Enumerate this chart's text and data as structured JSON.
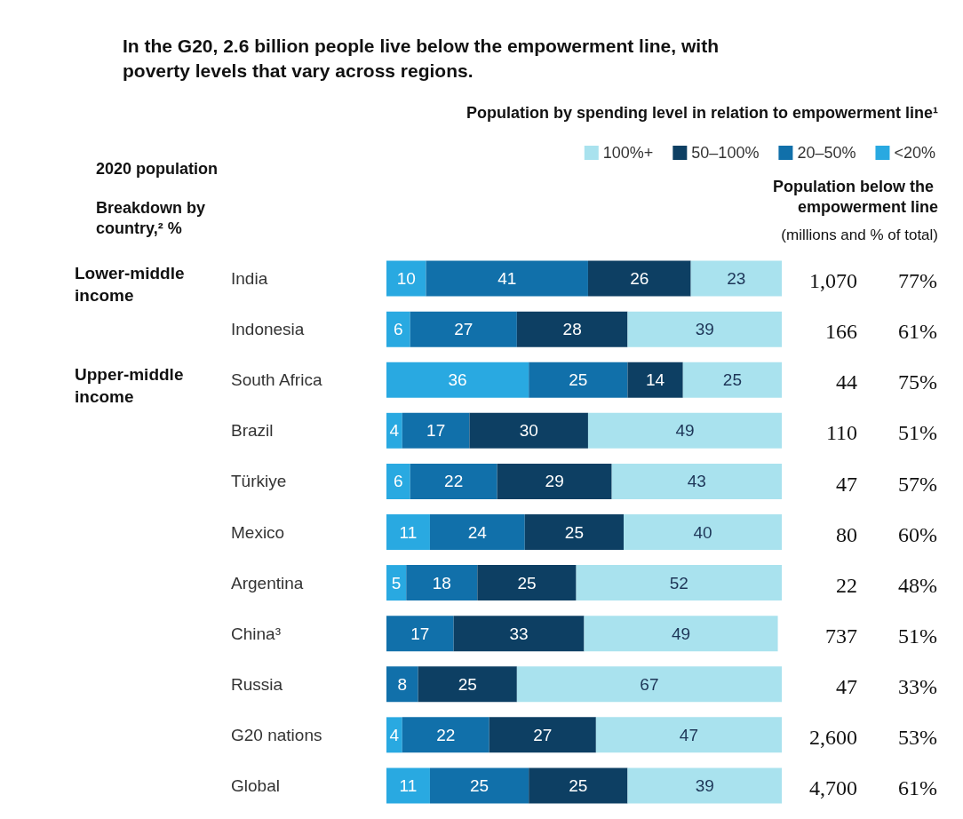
{
  "chart_data": {
    "type": "bar",
    "orientation": "horizontal",
    "stacked": true,
    "data_labels": true,
    "tick_labels": "y",
    "grid": false,
    "legend": "top right",
    "title": "In the G20, 2.6 billion people live below the empowerment line, with poverty levels that vary across regions.",
    "legend_title": "Population by spending level in relation to empowerment line¹",
    "categories": [
      "India",
      "Indonesia",
      "South Africa",
      "Brazil",
      "Türkiye",
      "Mexico",
      "Argentina",
      "China³",
      "Russia",
      "G20 nations",
      "Global"
    ],
    "xlim": [
      0,
      100
    ],
    "series": [
      {
        "name": "<20%",
        "color": "#29a9e1",
        "values": [
          10,
          6,
          36,
          4,
          6,
          11,
          5,
          null,
          null,
          4,
          11
        ]
      },
      {
        "name": "20–50%",
        "color": "#1170aa",
        "values": [
          41,
          27,
          25,
          17,
          22,
          24,
          18,
          17,
          8,
          22,
          25
        ]
      },
      {
        "name": "50–100%",
        "color": "#0d3f63",
        "values": [
          26,
          28,
          14,
          30,
          29,
          25,
          25,
          33,
          25,
          27,
          25
        ]
      },
      {
        "name": "100%+",
        "color": "#a9e2ee",
        "values": [
          23,
          39,
          25,
          49,
          43,
          40,
          52,
          49,
          67,
          47,
          39
        ]
      }
    ],
    "annotations": [
      "2020 population",
      "Breakdown by country,² %",
      "Lower-middle income",
      "Upper-middle income",
      "Population below the empowerment line",
      "(millions and % of total)",
      "1,070",
      "77%",
      "166",
      "61%",
      "44",
      "75%",
      "110",
      "51%",
      "47",
      "57%",
      "80",
      "60%",
      "22",
      "48%",
      "737",
      "51%",
      "47",
      "33%",
      "2,600",
      "53%",
      "4,700",
      "61%"
    ]
  }
}
